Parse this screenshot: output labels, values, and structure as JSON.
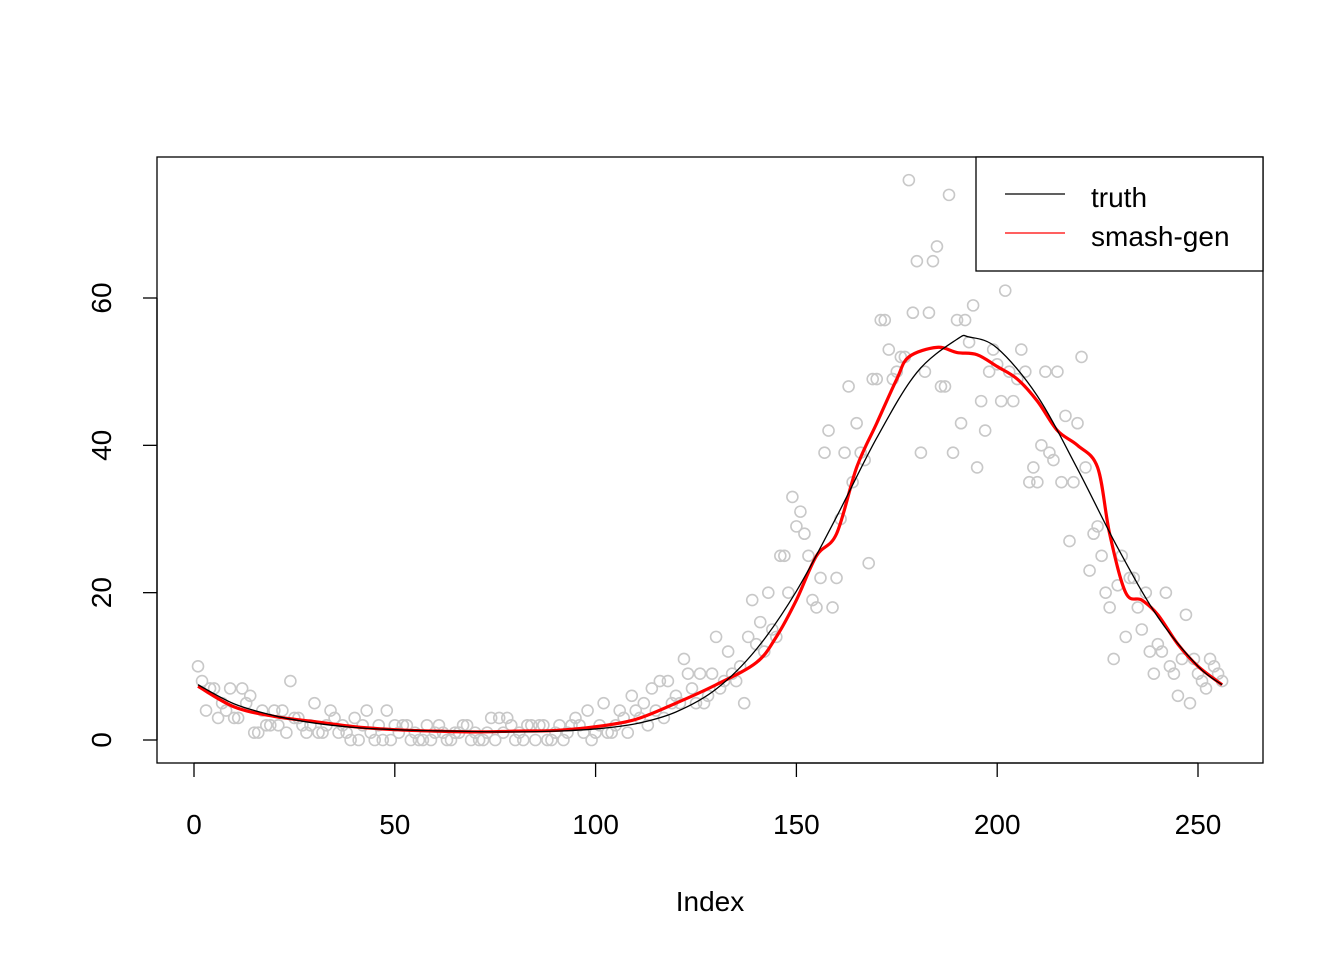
{
  "chart_data": {
    "type": "scatter",
    "title": "",
    "xlabel": "Index",
    "ylabel": "",
    "xlim": [
      1,
      256
    ],
    "ylim": [
      0,
      76
    ],
    "x_ticks": [
      "0",
      "50",
      "100",
      "150",
      "200",
      "250"
    ],
    "y_ticks": [
      "0",
      "20",
      "40",
      "60"
    ],
    "grid": false,
    "legend_placement": "top-right",
    "colors": {
      "points": "#c8c8c8",
      "truth": "#000000",
      "smash_gen": "#ff0000"
    },
    "points": {
      "x_start": 1,
      "y": [
        10,
        8,
        4,
        7,
        7,
        3,
        5,
        4,
        7,
        3,
        3,
        7,
        5,
        6,
        1,
        1,
        4,
        2,
        2,
        4,
        2,
        4,
        1,
        8,
        3,
        3,
        2,
        1,
        2,
        5,
        1,
        1,
        2,
        4,
        3,
        1,
        2,
        1,
        0,
        3,
        0,
        2,
        4,
        1,
        0,
        2,
        0,
        4,
        0,
        2,
        1,
        2,
        2,
        0,
        1,
        0,
        0,
        2,
        0,
        1,
        2,
        1,
        0,
        0,
        1,
        1,
        2,
        2,
        0,
        1,
        0,
        0,
        1,
        3,
        0,
        3,
        1,
        3,
        2,
        0,
        1,
        0,
        2,
        2,
        0,
        2,
        2,
        0,
        0,
        1,
        2,
        0,
        1,
        2,
        3,
        2,
        1,
        4,
        0,
        1,
        2,
        5,
        1,
        1,
        2,
        4,
        3,
        1,
        6,
        4,
        3,
        5,
        2,
        7,
        4,
        8,
        3,
        8,
        5,
        6,
        5,
        11,
        9,
        7,
        5,
        9,
        5,
        6,
        9,
        14,
        7,
        8,
        12,
        9,
        8,
        10,
        5,
        14,
        19,
        13,
        16,
        12,
        20,
        15,
        14,
        25,
        25,
        20,
        33,
        29,
        31,
        28,
        25,
        19,
        18,
        22,
        39,
        42,
        18,
        22,
        30,
        39,
        48,
        35,
        43,
        39,
        38,
        24,
        49,
        49,
        57,
        57,
        53,
        49,
        50,
        52,
        52,
        76,
        58,
        65,
        39,
        50,
        58,
        65,
        67,
        48,
        48,
        74,
        39,
        57,
        43,
        57,
        54,
        59,
        37,
        46,
        42,
        50,
        53,
        51,
        46,
        61,
        50,
        46,
        49,
        53,
        50,
        35,
        37,
        35,
        40,
        50,
        39,
        38,
        50,
        35,
        44,
        27,
        35,
        43,
        52,
        37,
        23,
        28,
        29,
        25,
        20,
        18,
        11,
        21,
        25,
        14,
        22,
        22,
        18,
        15,
        20,
        12,
        9,
        13,
        12,
        20,
        10,
        9,
        6,
        11,
        17,
        5,
        11,
        9,
        8,
        7,
        11,
        10,
        9,
        8
      ]
    },
    "series": [
      {
        "name": "truth",
        "x": [
          1,
          10,
          20,
          30,
          40,
          50,
          60,
          70,
          80,
          90,
          100,
          110,
          120,
          130,
          140,
          150,
          160,
          170,
          180,
          190,
          193,
          200,
          210,
          220,
          230,
          240,
          250,
          256
        ],
        "y": [
          7.5,
          4.9,
          3.3,
          2.3,
          1.7,
          1.4,
          1.25,
          1.15,
          1.1,
          1.2,
          1.5,
          2.2,
          3.8,
          6.9,
          12.3,
          20.2,
          30.3,
          41,
          49.9,
          54.4,
          54.7,
          53.2,
          46.7,
          36.8,
          26.1,
          16.7,
          10,
          7.5
        ]
      },
      {
        "name": "smash-gen",
        "x": [
          1,
          10,
          20,
          30,
          40,
          50,
          60,
          70,
          80,
          90,
          100,
          110,
          120,
          130,
          140,
          145,
          150,
          155,
          160,
          165,
          170,
          175,
          178,
          185,
          190,
          195,
          200,
          205,
          210,
          215,
          220,
          225,
          228,
          232,
          236,
          240,
          245,
          250,
          256
        ],
        "y": [
          7.3,
          4.5,
          3.2,
          2.5,
          1.8,
          1.4,
          1.2,
          1.1,
          1.2,
          1.3,
          1.8,
          2.8,
          5,
          7.5,
          10.5,
          14,
          19,
          25,
          28,
          37,
          43,
          49,
          52,
          53.3,
          52.6,
          52.3,
          50.7,
          49,
          46,
          42,
          40,
          37,
          28,
          20,
          19,
          17,
          13,
          10,
          7.5
        ]
      }
    ]
  }
}
